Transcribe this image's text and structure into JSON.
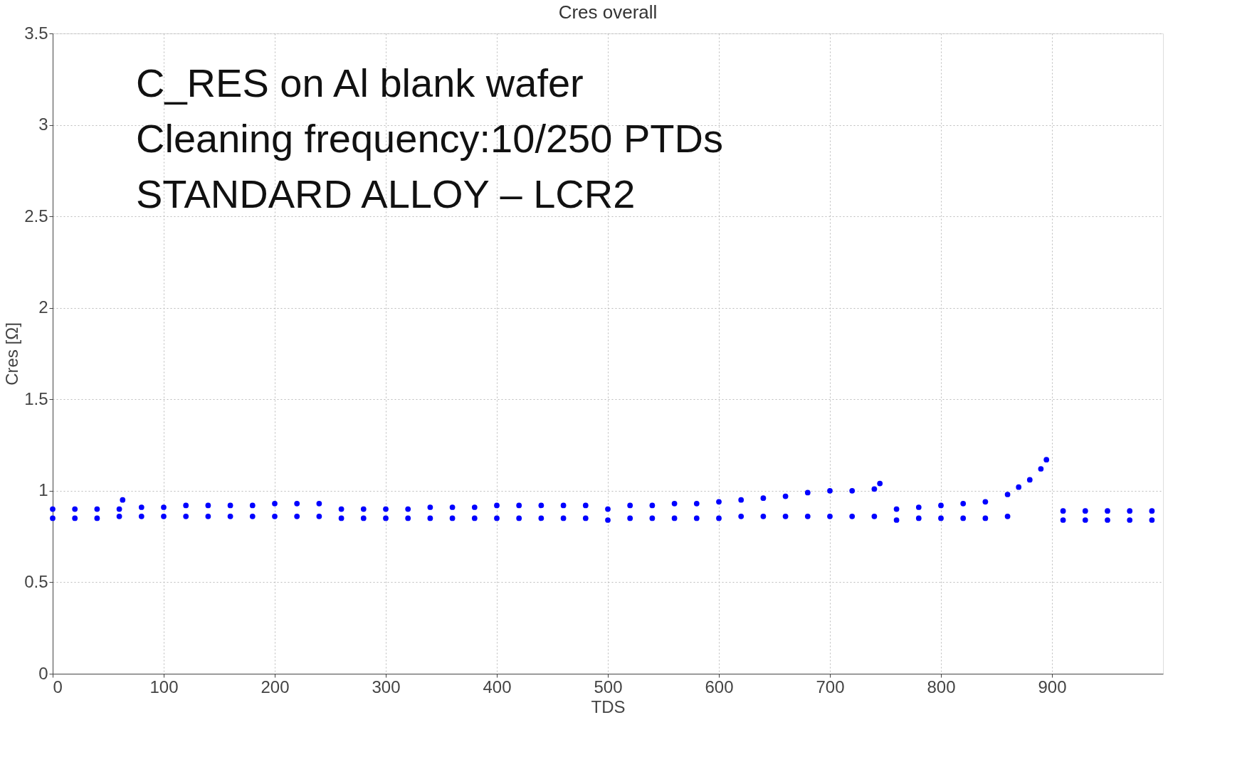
{
  "chart_data": {
    "type": "scatter",
    "title": "Cres overall",
    "xlabel": "TDS",
    "ylabel": "Cres [Ω]",
    "xlim": [
      0,
      1000
    ],
    "xticks": [
      0,
      100,
      200,
      300,
      400,
      500,
      600,
      700,
      800,
      900
    ],
    "ylim": [
      0,
      3.5
    ],
    "yticks": [
      0,
      0.5,
      1,
      1.5,
      2,
      2.5,
      3,
      3.5
    ],
    "grid": true,
    "marker": "circle",
    "annotations": [
      "C_RES on Al blank wafer",
      "Cleaning frequency:10/250 PTDs",
      "STANDARD ALLOY – LCR2"
    ],
    "series": [
      {
        "color": "#0000ff",
        "x": [
          0,
          0,
          20,
          20,
          40,
          40,
          60,
          60,
          63,
          80,
          80,
          100,
          100,
          120,
          120,
          140,
          140,
          160,
          160,
          180,
          180,
          200,
          200,
          220,
          220,
          240,
          240,
          260,
          260,
          280,
          280,
          300,
          300,
          320,
          320,
          340,
          340,
          360,
          360,
          380,
          380,
          400,
          400,
          420,
          420,
          440,
          440,
          460,
          460,
          480,
          480,
          500,
          500,
          520,
          520,
          540,
          540,
          560,
          560,
          580,
          580,
          600,
          600,
          620,
          620,
          640,
          640,
          660,
          660,
          680,
          680,
          700,
          700,
          720,
          720,
          740,
          740,
          745,
          760,
          760,
          780,
          780,
          800,
          800,
          820,
          820,
          840,
          840,
          860,
          860,
          870,
          880,
          890,
          895,
          910,
          910,
          930,
          930,
          950,
          950,
          970,
          970,
          990,
          990
        ],
        "values": [
          0.85,
          0.9,
          0.85,
          0.9,
          0.85,
          0.9,
          0.86,
          0.9,
          0.95,
          0.86,
          0.91,
          0.86,
          0.91,
          0.86,
          0.92,
          0.86,
          0.92,
          0.86,
          0.92,
          0.86,
          0.92,
          0.86,
          0.93,
          0.86,
          0.93,
          0.86,
          0.93,
          0.85,
          0.9,
          0.85,
          0.9,
          0.85,
          0.9,
          0.85,
          0.9,
          0.85,
          0.91,
          0.85,
          0.91,
          0.85,
          0.91,
          0.85,
          0.92,
          0.85,
          0.92,
          0.85,
          0.92,
          0.85,
          0.92,
          0.85,
          0.92,
          0.84,
          0.9,
          0.85,
          0.92,
          0.85,
          0.92,
          0.85,
          0.93,
          0.85,
          0.93,
          0.85,
          0.94,
          0.86,
          0.95,
          0.86,
          0.96,
          0.86,
          0.97,
          0.86,
          0.99,
          0.86,
          1.0,
          0.86,
          1.0,
          0.86,
          1.01,
          1.04,
          0.84,
          0.9,
          0.85,
          0.91,
          0.85,
          0.92,
          0.85,
          0.93,
          0.85,
          0.94,
          0.86,
          0.98,
          1.02,
          1.06,
          1.12,
          1.17,
          0.84,
          0.89,
          0.84,
          0.89,
          0.84,
          0.89,
          0.84,
          0.89,
          0.84,
          0.89
        ]
      }
    ]
  }
}
